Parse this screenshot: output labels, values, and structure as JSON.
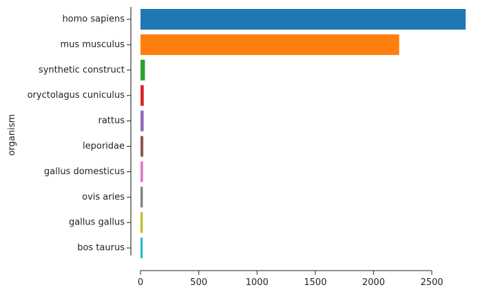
{
  "chart_data": {
    "type": "bar",
    "orientation": "horizontal",
    "title": "",
    "xlabel": "",
    "ylabel": "organism",
    "categories": [
      "homo sapiens",
      "mus musculus",
      "synthetic construct",
      "oryctolagus cuniculus",
      "rattus",
      "leporidae",
      "gallus domesticus",
      "ovis aries",
      "gallus gallus",
      "bos taurus"
    ],
    "values": [
      2790,
      2220,
      38,
      28,
      27,
      24,
      22,
      20,
      19,
      18
    ],
    "colors": [
      "#1f77b4",
      "#ff7f0e",
      "#2ca02c",
      "#d62728",
      "#9467bd",
      "#8c564b",
      "#e377c2",
      "#7f7f7f",
      "#bcbd22",
      "#17becf"
    ],
    "xlim": [
      0,
      2790
    ],
    "xticks": [
      0,
      500,
      1000,
      1500,
      2000,
      2500
    ],
    "grid": false,
    "legend": "none"
  }
}
